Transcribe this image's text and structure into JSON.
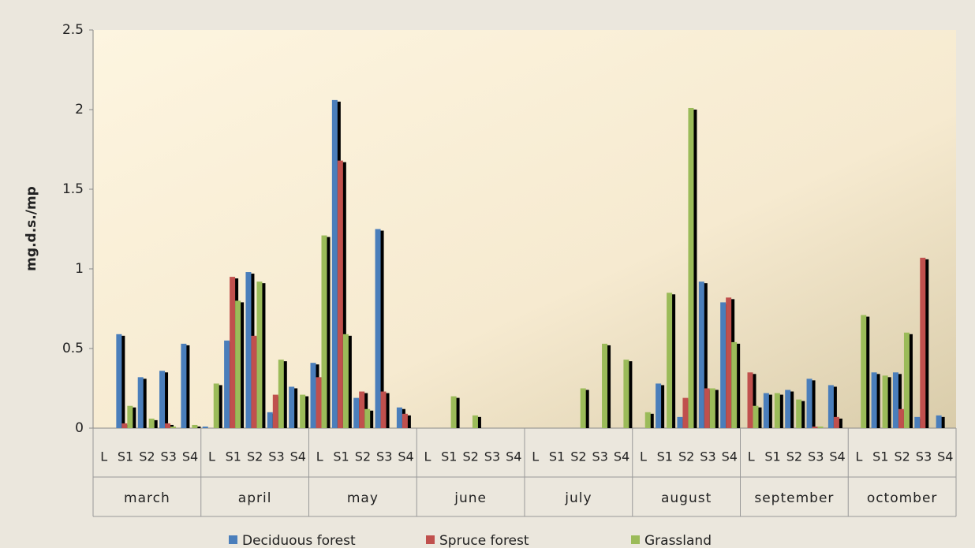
{
  "chart_data": {
    "type": "bar",
    "y_label": "mg.d.s./mp",
    "groups": [
      "march",
      "april",
      "may",
      "june",
      "july",
      "august",
      "september",
      "octomber"
    ],
    "categories": [
      "L",
      "S1",
      "S2",
      "S3",
      "S4",
      "L",
      "S1",
      "S2",
      "S3",
      "S4",
      "L",
      "S1",
      "S2",
      "S3",
      "S4",
      "L",
      "S1",
      "S2",
      "S3",
      "S4",
      "L",
      "S1",
      "S2",
      "S3",
      "S4",
      "L",
      "S1",
      "S2",
      "S3",
      "S4",
      "L",
      "S1",
      "S2",
      "S3",
      "S4",
      "L",
      "S1",
      "S2",
      "S3",
      "S4"
    ],
    "series": [
      {
        "name": "Deciduous forest",
        "color": "#4a7ebb",
        "values": [
          0,
          0.59,
          0.32,
          0.36,
          0.53,
          0.01,
          0.55,
          0.98,
          0.1,
          0.26,
          0.41,
          2.06,
          0.19,
          1.25,
          0.13,
          0,
          0,
          0,
          0,
          0,
          0,
          0,
          0,
          0,
          0,
          0,
          0.28,
          0.07,
          0.92,
          0.79,
          0,
          0.22,
          0.24,
          0.31,
          0.27,
          0,
          0.35,
          0.35,
          0.07,
          0.08
        ]
      },
      {
        "name": "Spruce forest",
        "color": "#c0504d",
        "values": [
          0,
          0.03,
          0,
          0.03,
          0,
          0,
          0.95,
          0.58,
          0.21,
          0,
          0.32,
          1.68,
          0.23,
          0.23,
          0.09,
          0,
          0,
          0,
          0,
          0,
          0,
          0,
          0,
          0,
          0,
          0,
          0,
          0.19,
          0.25,
          0.82,
          0.35,
          0,
          0,
          0.01,
          0.07,
          0,
          0,
          0.12,
          1.07,
          0
        ]
      },
      {
        "name": "Grassland",
        "color": "#9bbb59",
        "values": [
          0,
          0.14,
          0.06,
          0.01,
          0.02,
          0.28,
          0.8,
          0.92,
          0.43,
          0.21,
          1.21,
          0.59,
          0.12,
          0,
          0,
          0,
          0.2,
          0.08,
          0,
          0,
          0,
          0,
          0.25,
          0.53,
          0.43,
          0.1,
          0.85,
          2.01,
          0.25,
          0.54,
          0.14,
          0.22,
          0.18,
          0.01,
          0,
          0.71,
          0.33,
          0.6,
          0,
          0
        ]
      }
    ],
    "ylim": [
      0,
      2.5
    ],
    "yticks": [
      0,
      0.5,
      1,
      1.5,
      2,
      2.5
    ],
    "legend": "bottom",
    "shadow": true
  }
}
